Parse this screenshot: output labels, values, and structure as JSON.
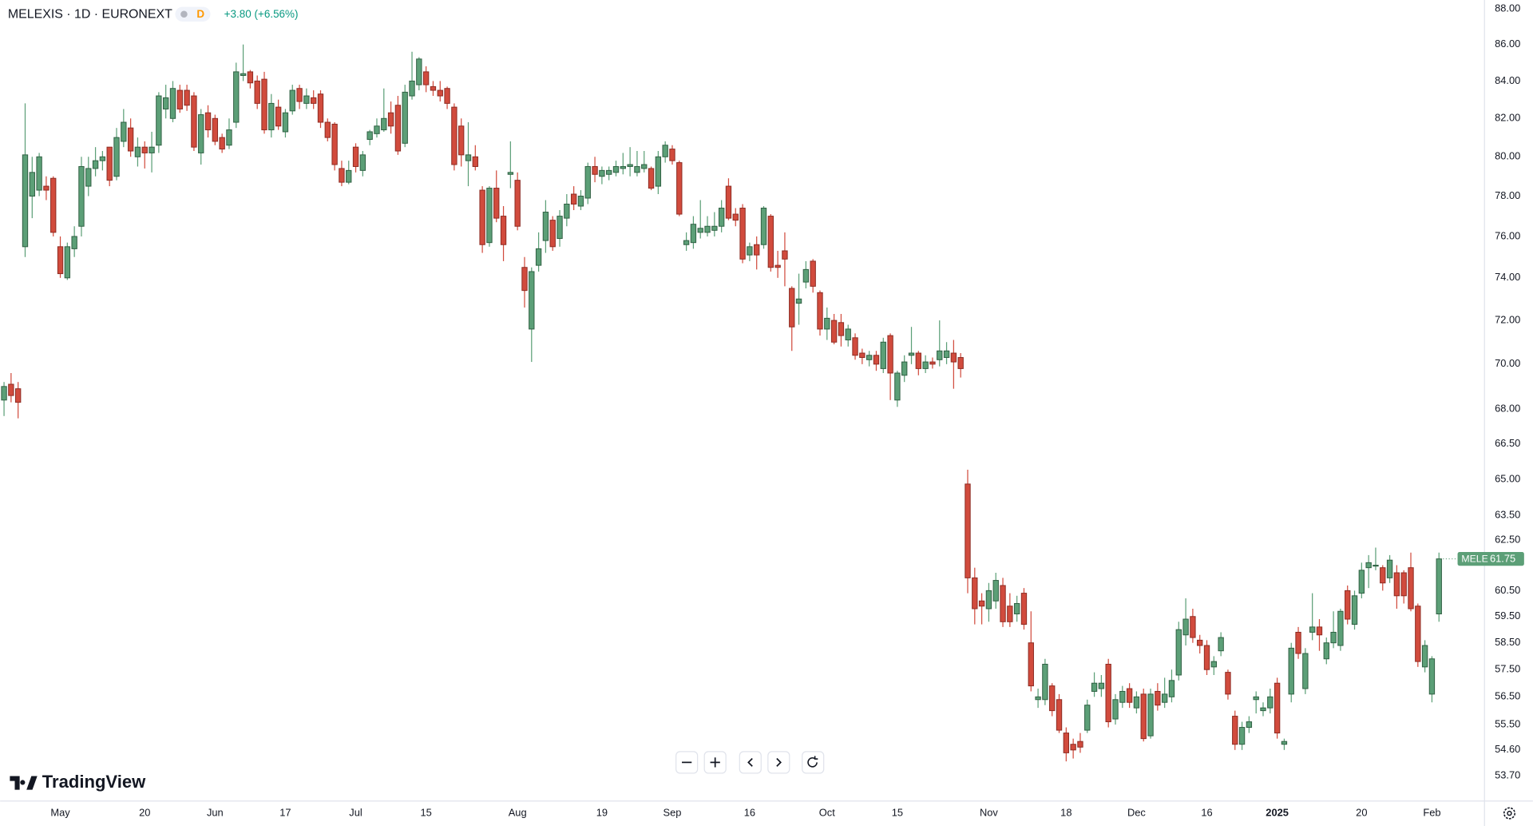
{
  "chart_data": {
    "type": "candlestick",
    "title": "MELEXIS · 1D · EURONEXT",
    "interval": "D",
    "change": "+3.80 (+6.56%)",
    "price_tag": "MELE",
    "watermark": "TradingView",
    "log": true,
    "grid": false,
    "up_color": "#5c9f77",
    "down_color": "#d14b3d",
    "up_border": "#2f5f42",
    "down_border": "#8c2b22",
    "ylim": [
      52.85,
      88.5
    ],
    "yticks": [
      {
        "value": 88,
        "label": "88.00"
      },
      {
        "value": 86,
        "label": "86.00"
      },
      {
        "value": 84,
        "label": "84.00"
      },
      {
        "value": 82,
        "label": "82.00"
      },
      {
        "value": 80,
        "label": "80.00"
      },
      {
        "value": 78,
        "label": "78.00"
      },
      {
        "value": 76,
        "label": "76.00"
      },
      {
        "value": 74,
        "label": "74.00"
      },
      {
        "value": 72,
        "label": "72.00"
      },
      {
        "value": 70,
        "label": "70.00"
      },
      {
        "value": 68,
        "label": "68.00"
      },
      {
        "value": 66.5,
        "label": "66.50"
      },
      {
        "value": 65,
        "label": "65.00"
      },
      {
        "value": 63.5,
        "label": "63.50"
      },
      {
        "value": 62.5,
        "label": "62.50"
      },
      {
        "value": 60.5,
        "label": "60.50"
      },
      {
        "value": 59.5,
        "label": "59.50"
      },
      {
        "value": 58.5,
        "label": "58.50"
      },
      {
        "value": 57.5,
        "label": "57.50"
      },
      {
        "value": 56.5,
        "label": "56.50"
      },
      {
        "value": 55.5,
        "label": "55.50"
      },
      {
        "value": 54.6,
        "label": "54.60"
      },
      {
        "value": 53.7,
        "label": "53.70"
      }
    ],
    "xlim": [
      -0.56,
      210.4
    ],
    "xticks": [
      {
        "value": 8,
        "label": "May"
      },
      {
        "value": 20,
        "label": "20"
      },
      {
        "value": 30,
        "label": "Jun"
      },
      {
        "value": 40,
        "label": "17"
      },
      {
        "value": 50,
        "label": "Jul"
      },
      {
        "value": 60,
        "label": "15"
      },
      {
        "value": 73,
        "label": "Aug"
      },
      {
        "value": 85,
        "label": "19"
      },
      {
        "value": 95,
        "label": "Sep"
      },
      {
        "value": 106,
        "label": "16"
      },
      {
        "value": 117,
        "label": "Oct"
      },
      {
        "value": 127,
        "label": "15"
      },
      {
        "value": 140,
        "label": "Nov"
      },
      {
        "value": 151,
        "label": "18"
      },
      {
        "value": 161,
        "label": "Dec"
      },
      {
        "value": 171,
        "label": "16"
      },
      {
        "value": 181,
        "label": "2025"
      },
      {
        "value": 193,
        "label": "20"
      },
      {
        "value": 203,
        "label": "Feb"
      }
    ],
    "open": [
      68.4,
      69.1,
      68.9,
      75.5,
      78,
      78.3,
      78.5,
      78.9,
      75.5,
      74,
      75.4,
      76.5,
      78.5,
      79.4,
      79.8,
      80.5,
      79,
      80.8,
      81.5,
      80,
      80.5,
      80.2,
      80.6,
      82.5,
      82,
      83.5,
      83.5,
      83.2,
      80.2,
      82.3,
      82,
      81,
      80.6,
      81.8,
      84.3,
      84.5,
      84,
      84.1,
      81.4,
      82.6,
      81.3,
      82.4,
      83.6,
      82.8,
      83.1,
      83.3,
      81.8,
      81.7,
      79.4,
      78.7,
      80.5,
      79.3,
      80.9,
      81.2,
      81.4,
      82.3,
      82.7,
      80.7,
      83.2,
      83.8,
      84.5,
      83.7,
      83.5,
      83.6,
      82.6,
      81.6,
      79.8,
      80,
      78.3,
      75.7,
      78.4,
      77,
      79.1,
      78.8,
      74.5,
      71.6,
      74.6,
      75.8,
      76.8,
      75.9,
      76.9,
      78.1,
      77.5,
      77.9,
      79.5,
      79,
      79.1,
      79.2,
      79.4,
      79.5,
      79.2,
      79.4,
      79.4,
      78.5,
      80,
      80.4,
      79.7,
      75.6,
      75.7,
      76.2,
      76.2,
      76.3,
      76.5,
      78.5,
      77.1,
      77.4,
      75.1,
      75.6,
      75.6,
      77,
      74.6,
      75.3,
      73.5,
      72.8,
      73.8,
      74.8,
      73.3,
      71.6,
      72,
      71.9,
      71.1,
      71.2,
      70.5,
      70.2,
      70.4,
      69.8,
      71.3,
      68.4,
      69.5,
      70.4,
      70.5,
      69.8,
      70.1,
      70.2,
      70.3,
      70.5,
      70.3,
      64.8,
      61,
      60.1,
      59.8,
      60.1,
      60.7,
      59.9,
      59.6,
      60.4,
      58.5,
      56.4,
      56.4,
      56.9,
      56.4,
      55.2,
      54.8,
      54.9,
      55.3,
      56.7,
      56.8,
      57.7,
      55.7,
      56.3,
      56.8,
      56.1,
      56.6,
      55.1,
      56.7,
      56.3,
      56.5,
      57.3,
      58.8,
      59.5,
      58.6,
      58.4,
      57.6,
      58.2,
      57.4,
      55.8,
      54.8,
      55.4,
      56.4,
      56,
      56.1,
      57,
      54.8,
      56.6,
      58.9,
      56.8,
      58.9,
      59.1,
      57.9,
      58.5,
      58.4,
      60.5,
      59.2,
      60.4,
      61.4,
      61.5,
      61.4,
      61,
      61.2,
      61.2,
      61.4,
      59.9,
      57.6,
      56.6,
      59.6
    ],
    "high": [
      69.2,
      69.6,
      69.2,
      82.8,
      80,
      80.2,
      79,
      79,
      76,
      75.7,
      76.5,
      80,
      80,
      80.5,
      80.3,
      80.5,
      81.5,
      82.5,
      82,
      81,
      80.8,
      81.3,
      83.4,
      83.8,
      84,
      83.8,
      83.8,
      83.4,
      82.5,
      82.7,
      82.2,
      81.2,
      82,
      85,
      86,
      84.6,
      84.3,
      84.5,
      83.3,
      83,
      82.5,
      83.8,
      83.8,
      83.6,
      83.5,
      83.5,
      82,
      81.8,
      79.8,
      79.8,
      80.7,
      80.3,
      81.4,
      82,
      83.6,
      82.9,
      83.2,
      83.8,
      85.6,
      85.3,
      84.8,
      84,
      84,
      83.7,
      82.8,
      82,
      81.8,
      80.6,
      78.5,
      78.5,
      79.3,
      77.5,
      80.8,
      79.2,
      75,
      74.5,
      76.2,
      77.8,
      77,
      77.3,
      78.1,
      78.5,
      78.3,
      79.7,
      80,
      79.5,
      79.5,
      79.8,
      80.2,
      80.5,
      80.3,
      80.3,
      79.5,
      80.3,
      80.8,
      80.6,
      79.8,
      76.2,
      77,
      77.8,
      77,
      77.2,
      77.8,
      78.9,
      77.4,
      77.6,
      75.7,
      76,
      77.5,
      77.1,
      75.3,
      76.2,
      73.6,
      74.2,
      74.8,
      74.9,
      73.4,
      72.6,
      72.3,
      72.3,
      71.8,
      71.4,
      70.7,
      70.6,
      70.6,
      71.2,
      71.4,
      69.7,
      70.4,
      71.7,
      70.6,
      70.4,
      70.3,
      72,
      71,
      71.1,
      70.5,
      65.4,
      61.4,
      60.4,
      60.8,
      61.2,
      61,
      60.4,
      60.3,
      60.6,
      59.7,
      56.8,
      57.9,
      57,
      56.6,
      55.4,
      55,
      55.2,
      56.4,
      57.4,
      57.3,
      57.9,
      56.6,
      56.9,
      57,
      56.7,
      56.8,
      56.8,
      57,
      57.2,
      57.5,
      59.3,
      60.2,
      59.8,
      58.8,
      58.6,
      58,
      58.9,
      57.5,
      56,
      55.6,
      55.8,
      56.7,
      56.3,
      56.8,
      57.2,
      55,
      58.5,
      59.1,
      58.3,
      60.4,
      59.4,
      58.7,
      59.7,
      59.8,
      60.7,
      60.5,
      61.6,
      61.9,
      62.2,
      61.5,
      61.9,
      61.5,
      61.3,
      62,
      60,
      58.6,
      58,
      62
    ],
    "low": [
      67.7,
      68.3,
      67.6,
      75,
      76.9,
      78,
      77.8,
      76,
      74,
      73.9,
      75,
      76,
      78,
      79,
      79.3,
      78.5,
      78.8,
      80.5,
      80,
      79.5,
      79.4,
      79.2,
      80.2,
      82,
      81.8,
      82.3,
      82.4,
      80.3,
      79.6,
      81,
      80.6,
      80.2,
      80.4,
      81.5,
      84,
      83.6,
      82.5,
      81.2,
      81,
      81.4,
      81,
      82.2,
      82.5,
      82.5,
      82.5,
      81.5,
      80.8,
      79.3,
      78.5,
      78.6,
      79.2,
      79,
      80.6,
      81,
      81.3,
      81.2,
      80.1,
      80.5,
      83,
      83.5,
      83.4,
      83.2,
      82.9,
      82.5,
      79.3,
      79.5,
      78.5,
      79.3,
      75.2,
      75.5,
      76.7,
      74.8,
      78.4,
      76.3,
      72.6,
      70.1,
      74.3,
      75.2,
      75.3,
      75.5,
      76.5,
      77.3,
      77.3,
      77.6,
      78.7,
      78.6,
      78.8,
      79,
      79.1,
      79,
      79,
      79.2,
      78.3,
      78.1,
      79.7,
      79.6,
      77,
      75.3,
      75.4,
      75.9,
      76,
      76,
      76.2,
      76.8,
      76.5,
      74.7,
      74.8,
      74.4,
      75.4,
      74.3,
      74,
      73.6,
      70.6,
      71.8,
      73.5,
      73.3,
      71.3,
      71.1,
      70.9,
      70.8,
      70.8,
      70.2,
      70,
      69.9,
      69.7,
      69.6,
      68.4,
      68.1,
      69.2,
      70,
      69.5,
      69.6,
      69.8,
      69.9,
      70,
      68.9,
      69.4,
      60.4,
      59.2,
      59.2,
      59.3,
      59.8,
      59.1,
      59.1,
      59.3,
      59,
      56.7,
      56.1,
      56.2,
      55.8,
      55.2,
      54.2,
      54.3,
      54.5,
      55.2,
      56.5,
      56.5,
      55.4,
      55.5,
      56.1,
      56.1,
      55.9,
      54.9,
      55,
      56,
      56.1,
      56.3,
      57.1,
      58.4,
      58.5,
      58.1,
      57.3,
      57.3,
      58,
      56.4,
      54.6,
      54.6,
      55.2,
      55.9,
      55.8,
      55.9,
      55,
      54.6,
      56.3,
      57.9,
      56.6,
      58.6,
      58.2,
      57.7,
      58.3,
      58.2,
      59.2,
      59,
      60.2,
      60.6,
      61.3,
      60.5,
      60.8,
      59.8,
      60,
      59.7,
      57.6,
      57.4,
      56.3,
      59.3
    ],
    "close": [
      69,
      68.6,
      68.3,
      80.1,
      79.2,
      80,
      78.3,
      76.2,
      74.2,
      75.5,
      76,
      79.5,
      79.4,
      79.8,
      80,
      78.8,
      81,
      81.8,
      80.3,
      80.5,
      80.2,
      80.5,
      83.2,
      83.1,
      83.6,
      82.5,
      82.7,
      80.5,
      82.2,
      81.4,
      80.8,
      80.4,
      81.4,
      84.5,
      84.4,
      83.9,
      82.8,
      81.4,
      82.8,
      81.6,
      82.3,
      83.5,
      82.9,
      83.2,
      82.8,
      81.8,
      81,
      79.6,
      78.7,
      79.3,
      79.5,
      80.1,
      81.3,
      81.6,
      82,
      81.6,
      80.3,
      83.4,
      84,
      85.2,
      83.8,
      83.5,
      83.2,
      82.8,
      79.6,
      80.1,
      80.1,
      79.5,
      75.6,
      78.4,
      76.9,
      75.6,
      79.2,
      76.5,
      73.4,
      74.3,
      75.4,
      77.2,
      75.5,
      77,
      77.6,
      77.6,
      78,
      79.5,
      79.1,
      79.3,
      79.3,
      79.5,
      79.5,
      79.6,
      79.5,
      79.6,
      78.4,
      80,
      80.6,
      79.8,
      77.1,
      75.8,
      76.6,
      76.4,
      76.5,
      76.5,
      77.4,
      76.9,
      76.8,
      74.9,
      75.5,
      75.1,
      77.4,
      74.5,
      74.5,
      74.9,
      71.7,
      73,
      74.4,
      73.6,
      71.6,
      72.1,
      71,
      71.3,
      71.6,
      70.4,
      70.3,
      70.4,
      70,
      71,
      69.6,
      69.6,
      70.1,
      70.5,
      69.8,
      70.1,
      70,
      70.6,
      70.6,
      70.1,
      69.8,
      61,
      59.8,
      59.9,
      60.5,
      60.9,
      59.3,
      59.3,
      60,
      59.2,
      56.9,
      56.5,
      57.7,
      56,
      55.3,
      54.5,
      54.6,
      54.7,
      56.2,
      57,
      57,
      55.6,
      56.4,
      56.7,
      56.3,
      56.5,
      55,
      56.6,
      56.2,
      56.6,
      57.1,
      59,
      59.4,
      58.7,
      58.4,
      57.5,
      57.8,
      58.7,
      56.6,
      54.8,
      55.4,
      55.6,
      56.5,
      56.1,
      56.5,
      55.2,
      54.9,
      58.3,
      58.1,
      58.1,
      59.1,
      58.8,
      58.5,
      58.9,
      59.7,
      59.4,
      60.3,
      61.3,
      61.6,
      61.5,
      60.8,
      61.7,
      60.3,
      60.3,
      59.8,
      57.8,
      58.4,
      57.9,
      61.75
    ]
  }
}
